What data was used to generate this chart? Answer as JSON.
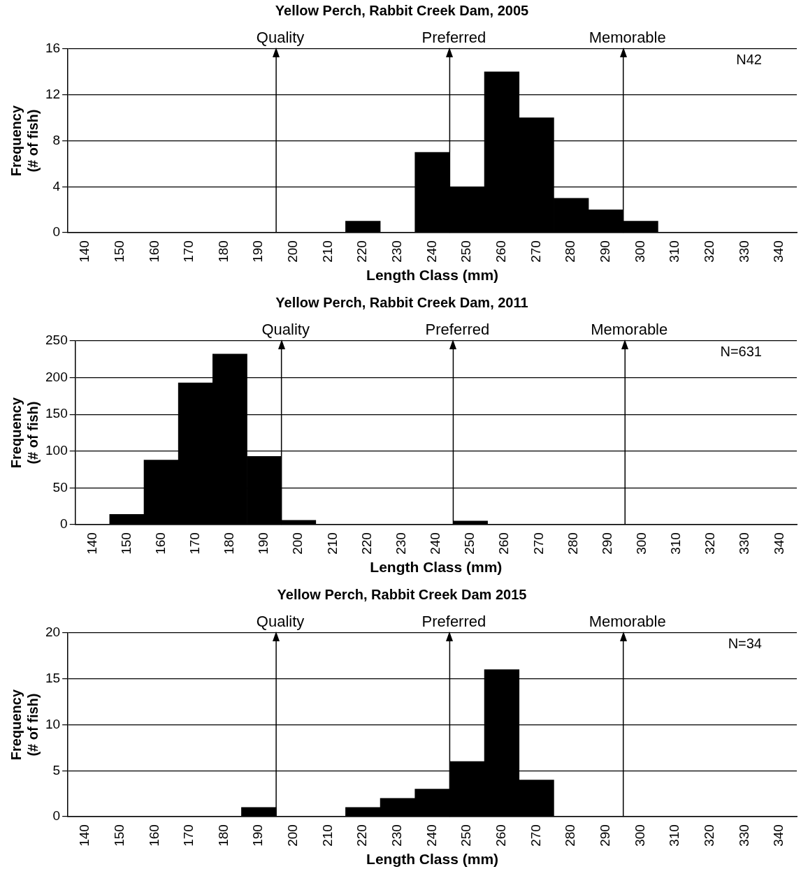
{
  "chart_data": [
    {
      "type": "histogram",
      "title": "Yellow Perch, Rabbit Creek Dam, 2005",
      "xlabel": "Length Class (mm)",
      "ylabel": "Frequency\n(# of fish)",
      "color": "#000000",
      "bins": [
        135,
        145,
        155,
        165,
        175,
        185,
        195,
        205,
        215,
        225,
        235,
        245,
        255,
        265,
        275,
        285,
        295,
        305,
        315,
        325,
        335,
        345
      ],
      "values": [
        0,
        0,
        0,
        0,
        0,
        0,
        0,
        0,
        1,
        0,
        7,
        4,
        14,
        10,
        3,
        2,
        1,
        0,
        0,
        0,
        0
      ],
      "xlim": [
        135,
        345
      ],
      "xticks": [
        140,
        150,
        160,
        170,
        180,
        190,
        200,
        210,
        220,
        230,
        240,
        250,
        260,
        270,
        280,
        290,
        300,
        310,
        320,
        330,
        340
      ],
      "ylim": [
        0,
        16
      ],
      "yticks": [
        0,
        4,
        8,
        12,
        16
      ],
      "grid": "y",
      "ref_lines": [
        {
          "axis": "x",
          "value": 195,
          "label": "Quality"
        },
        {
          "axis": "x",
          "value": 245,
          "label": "Preferred"
        },
        {
          "axis": "x",
          "value": 295,
          "label": "Memorable"
        }
      ],
      "annotations": [
        "N42"
      ]
    },
    {
      "type": "histogram",
      "title": "Yellow Perch, Rabbit Creek Dam, 2011",
      "xlabel": "Length Class (mm)",
      "ylabel": "Frequency\n(# of fish)",
      "color": "#000000",
      "bins": [
        135,
        145,
        155,
        165,
        175,
        185,
        195,
        205,
        215,
        225,
        235,
        245,
        255,
        265,
        275,
        285,
        295,
        305,
        315,
        325,
        335,
        345
      ],
      "values": [
        0,
        14,
        88,
        193,
        232,
        93,
        6,
        0,
        0,
        0,
        0,
        5,
        0,
        0,
        0,
        0,
        0,
        0,
        0,
        0,
        0
      ],
      "xlim": [
        135,
        345
      ],
      "xticks": [
        140,
        150,
        160,
        170,
        180,
        190,
        200,
        210,
        220,
        230,
        240,
        250,
        260,
        270,
        280,
        290,
        300,
        310,
        320,
        330,
        340
      ],
      "ylim": [
        0,
        250
      ],
      "yticks": [
        0,
        50,
        100,
        150,
        200,
        250
      ],
      "grid": "y",
      "ref_lines": [
        {
          "axis": "x",
          "value": 195,
          "label": "Quality"
        },
        {
          "axis": "x",
          "value": 245,
          "label": "Preferred"
        },
        {
          "axis": "x",
          "value": 295,
          "label": "Memorable"
        }
      ],
      "annotations": [
        "N=631"
      ]
    },
    {
      "type": "histogram",
      "title": "Yellow Perch, Rabbit Creek Dam 2015",
      "xlabel": "Length Class (mm)",
      "ylabel": "Frequency\n(# of fish)",
      "color": "#000000",
      "bins": [
        135,
        145,
        155,
        165,
        175,
        185,
        195,
        205,
        215,
        225,
        235,
        245,
        255,
        265,
        275,
        285,
        295,
        305,
        315,
        325,
        335,
        345
      ],
      "values": [
        0,
        0,
        0,
        0,
        0,
        1,
        0,
        0,
        1,
        2,
        3,
        6,
        16,
        4,
        0,
        0,
        0,
        0,
        0,
        0,
        0
      ],
      "xlim": [
        135,
        345
      ],
      "xticks": [
        140,
        150,
        160,
        170,
        180,
        190,
        200,
        210,
        220,
        230,
        240,
        250,
        260,
        270,
        280,
        290,
        300,
        310,
        320,
        330,
        340
      ],
      "ylim": [
        0,
        20
      ],
      "yticks": [
        0,
        5,
        10,
        15,
        20
      ],
      "grid": "y",
      "ref_lines": [
        {
          "axis": "x",
          "value": 195,
          "label": "Quality"
        },
        {
          "axis": "x",
          "value": 245,
          "label": "Preferred"
        },
        {
          "axis": "x",
          "value": 295,
          "label": "Memorable"
        }
      ],
      "annotations": [
        "N=34"
      ]
    }
  ]
}
